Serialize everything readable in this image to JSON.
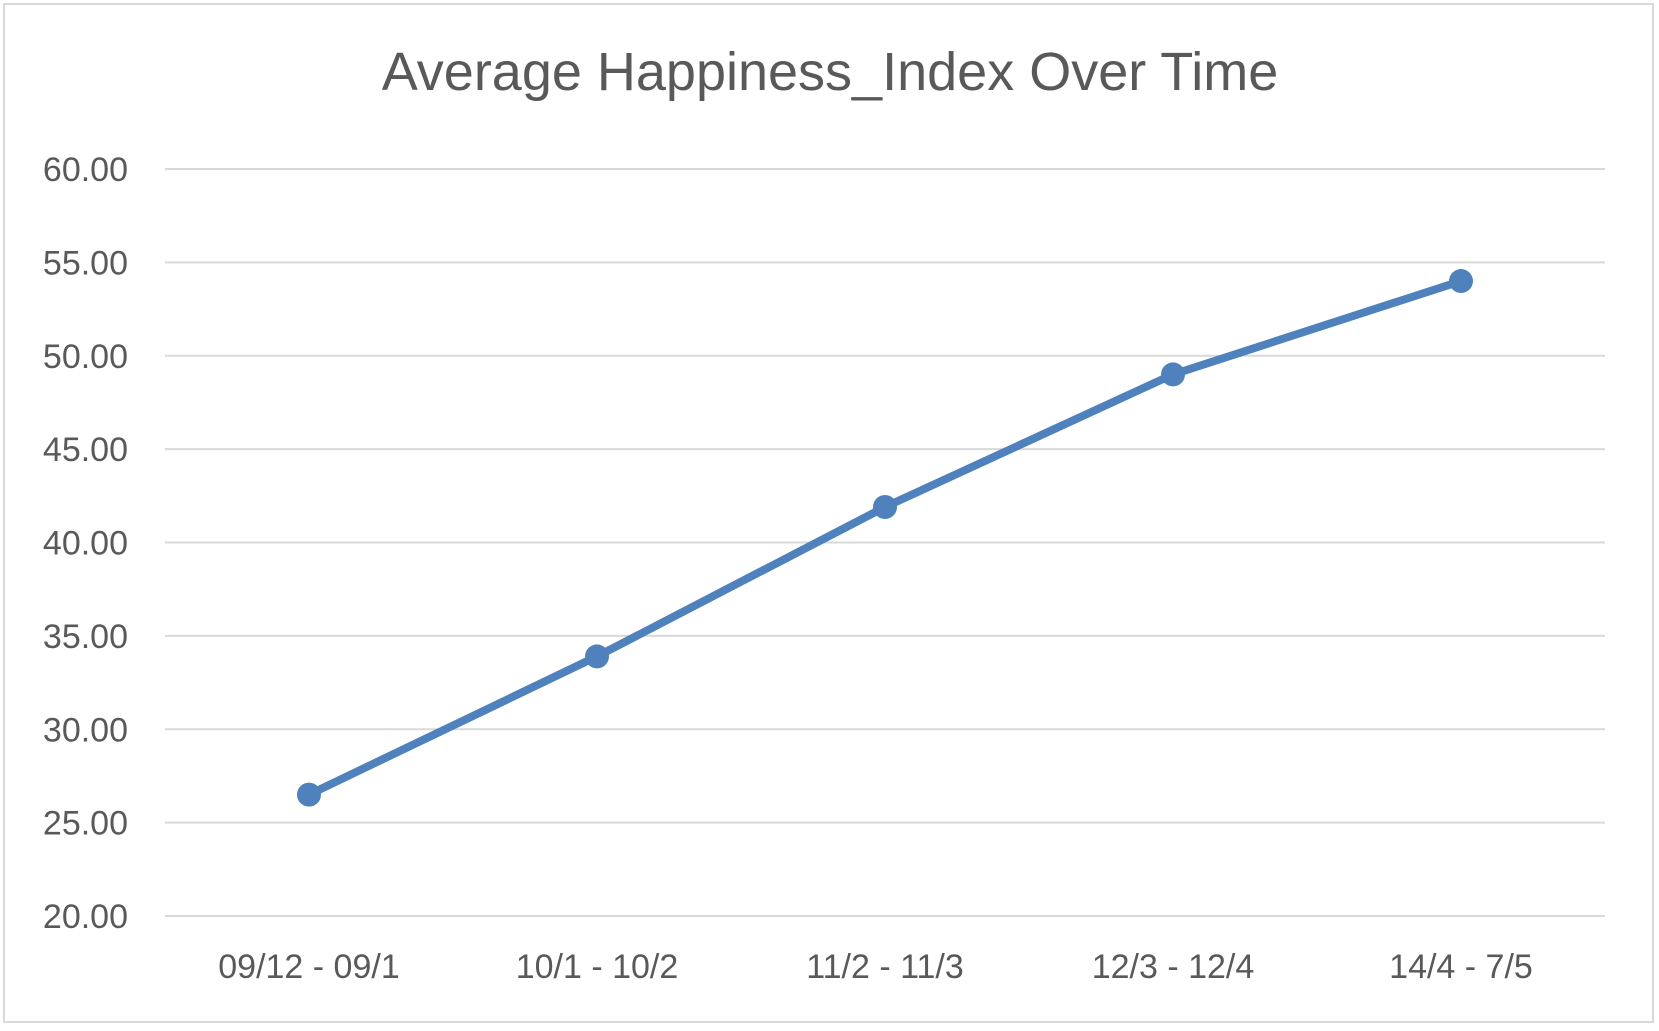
{
  "chart_data": {
    "type": "line",
    "title": "Average Happiness_Index Over Time",
    "xlabel": "",
    "ylabel": "",
    "categories": [
      "09/12 - 09/1",
      "10/1 - 10/2",
      "11/2 - 11/3",
      "12/3 - 12/4",
      "14/4 - 7/5"
    ],
    "series": [
      {
        "values": [
          26.5,
          33.9,
          41.9,
          49.0,
          54.0
        ],
        "color": "#4f81bd",
        "markers": true
      }
    ],
    "ylim": [
      20,
      60
    ],
    "yticks": [
      "20.00",
      "25.00",
      "30.00",
      "35.00",
      "40.00",
      "45.00",
      "50.00",
      "55.00",
      "60.00"
    ],
    "grid": true,
    "legend": "none"
  }
}
